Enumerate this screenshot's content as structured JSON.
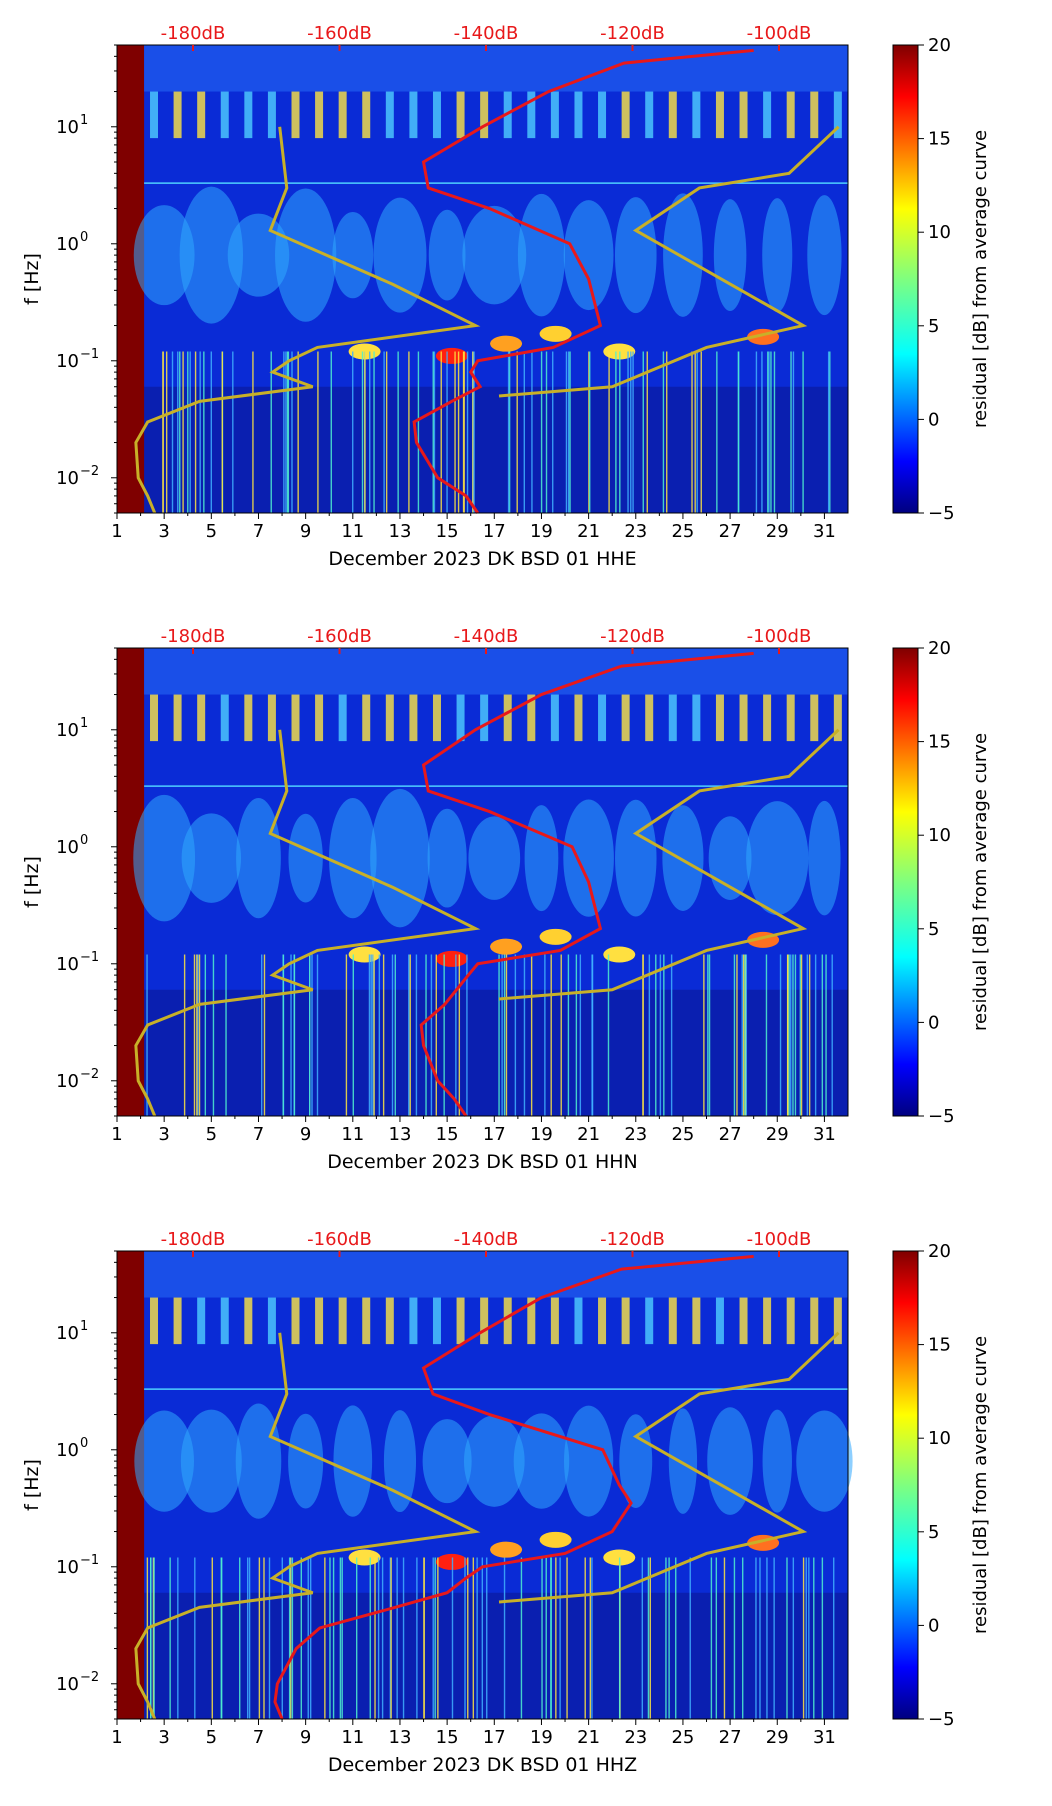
{
  "chart_data": [
    {
      "type": "heatmap",
      "title": "",
      "xlabel": "December 2023 DK BSD 01 HHE",
      "ylabel": "f [Hz]",
      "colorbar_label": "residual [dB] from average curve",
      "x_ticks": [
        "1",
        "3",
        "5",
        "7",
        "9",
        "11",
        "13",
        "15",
        "17",
        "19",
        "21",
        "23",
        "25",
        "27",
        "29",
        "31"
      ],
      "y_ticks": [
        "10^-2",
        "10^-1",
        "10^0",
        "10^1"
      ],
      "xlim": [
        1,
        32
      ],
      "ylim_hz": [
        0.005,
        50
      ],
      "colorbar_range": [
        -5,
        20
      ],
      "colorbar_ticks": [
        "-5",
        "0",
        "5",
        "10",
        "15",
        "20"
      ],
      "top_ticks": [
        "-180dB",
        "-160dB",
        "-140dB",
        "-120dB",
        "-100dB"
      ],
      "red_curve": [
        [
          0.005,
          16.3
        ],
        [
          0.007,
          15.8
        ],
        [
          0.01,
          14.6
        ],
        [
          0.02,
          13.7
        ],
        [
          0.03,
          13.6
        ],
        [
          0.045,
          15.2
        ],
        [
          0.06,
          16.4
        ],
        [
          0.08,
          16.0
        ],
        [
          0.1,
          16.3
        ],
        [
          0.13,
          19.5
        ],
        [
          0.2,
          21.5
        ],
        [
          0.5,
          21.0
        ],
        [
          1.0,
          20.2
        ],
        [
          2.0,
          16.8
        ],
        [
          3.0,
          14.2
        ],
        [
          5.0,
          14.0
        ],
        [
          10,
          16.5
        ],
        [
          20,
          19.3
        ],
        [
          35,
          22.5
        ],
        [
          45,
          28.0
        ]
      ],
      "gold_curve": [
        [
          0.005,
          2.6
        ],
        [
          0.007,
          2.3
        ],
        [
          0.01,
          1.9
        ],
        [
          0.02,
          1.8
        ],
        [
          0.03,
          2.3
        ],
        [
          0.045,
          4.5
        ],
        [
          0.06,
          9.3
        ],
        [
          0.08,
          7.6
        ],
        [
          0.1,
          8.3
        ],
        [
          0.13,
          9.5
        ],
        [
          0.2,
          16.2
        ],
        [
          0.45,
          12.7
        ],
        [
          1.3,
          7.5
        ],
        [
          3.0,
          8.2
        ],
        [
          10,
          7.9
        ],
        [
          0.05,
          17.2
        ],
        [
          0.06,
          22.0
        ],
        [
          0.13,
          26.0
        ],
        [
          0.2,
          30.1
        ],
        [
          1.3,
          23.0
        ],
        [
          3.0,
          25.7
        ],
        [
          4.0,
          29.5
        ],
        [
          10,
          31.6
        ]
      ]
    },
    {
      "type": "heatmap",
      "title": "",
      "xlabel": "December 2023 DK BSD 01 HHN",
      "ylabel": "f [Hz]",
      "colorbar_label": "residual [dB] from average curve",
      "x_ticks": [
        "1",
        "3",
        "5",
        "7",
        "9",
        "11",
        "13",
        "15",
        "17",
        "19",
        "21",
        "23",
        "25",
        "27",
        "29",
        "31"
      ],
      "y_ticks": [
        "10^-2",
        "10^-1",
        "10^0",
        "10^1"
      ],
      "xlim": [
        1,
        32
      ],
      "ylim_hz": [
        0.005,
        50
      ],
      "colorbar_range": [
        -5,
        20
      ],
      "colorbar_ticks": [
        "-5",
        "0",
        "5",
        "10",
        "15",
        "20"
      ],
      "top_ticks": [
        "-180dB",
        "-160dB",
        "-140dB",
        "-120dB",
        "-100dB"
      ],
      "red_curve": [
        [
          0.005,
          15.8
        ],
        [
          0.007,
          15.3
        ],
        [
          0.01,
          14.6
        ],
        [
          0.02,
          14.0
        ],
        [
          0.03,
          13.9
        ],
        [
          0.045,
          14.9
        ],
        [
          0.06,
          15.4
        ],
        [
          0.08,
          15.9
        ],
        [
          0.1,
          16.3
        ],
        [
          0.13,
          19.8
        ],
        [
          0.2,
          21.5
        ],
        [
          0.5,
          21.0
        ],
        [
          1.0,
          20.3
        ],
        [
          2.0,
          16.8
        ],
        [
          3.0,
          14.2
        ],
        [
          5.0,
          14.0
        ],
        [
          10,
          16.2
        ],
        [
          20,
          19.0
        ],
        [
          35,
          22.4
        ],
        [
          45,
          28.0
        ]
      ],
      "gold_curve": []
    },
    {
      "type": "heatmap",
      "title": "",
      "xlabel": "December 2023 DK BSD 01 HHZ",
      "ylabel": "f [Hz]",
      "colorbar_label": "residual [dB] from average curve",
      "x_ticks": [
        "1",
        "3",
        "5",
        "7",
        "9",
        "11",
        "13",
        "15",
        "17",
        "19",
        "21",
        "23",
        "25",
        "27",
        "29",
        "31"
      ],
      "y_ticks": [
        "10^-2",
        "10^-1",
        "10^0",
        "10^1"
      ],
      "xlim": [
        1,
        32
      ],
      "ylim_hz": [
        0.005,
        50
      ],
      "colorbar_range": [
        -5,
        20
      ],
      "colorbar_ticks": [
        "-5",
        "0",
        "5",
        "10",
        "15",
        "20"
      ],
      "top_ticks": [
        "-180dB",
        "-160dB",
        "-140dB",
        "-120dB",
        "-100dB"
      ],
      "red_curve": [
        [
          0.005,
          8.0
        ],
        [
          0.007,
          7.7
        ],
        [
          0.01,
          7.8
        ],
        [
          0.02,
          8.6
        ],
        [
          0.03,
          9.6
        ],
        [
          0.045,
          12.8
        ],
        [
          0.06,
          15.0
        ],
        [
          0.08,
          15.8
        ],
        [
          0.1,
          16.5
        ],
        [
          0.13,
          20.0
        ],
        [
          0.2,
          22.0
        ],
        [
          0.35,
          22.8
        ],
        [
          0.5,
          22.3
        ],
        [
          1.0,
          21.6
        ],
        [
          2.0,
          16.8
        ],
        [
          3.0,
          14.4
        ],
        [
          5.0,
          14.0
        ],
        [
          10,
          16.4
        ],
        [
          20,
          19.0
        ],
        [
          35,
          22.4
        ],
        [
          45,
          28.0
        ]
      ],
      "gold_curve": []
    }
  ],
  "colors": {
    "red_curve": "#e8181a",
    "gold_curve": "#c8b028",
    "top_ticks": "#e8181a",
    "cmap": [
      "#00007f",
      "#0000ff",
      "#007fff",
      "#00ffff",
      "#7fff7f",
      "#ffff00",
      "#ff7f00",
      "#ff0000",
      "#7f0000"
    ]
  }
}
